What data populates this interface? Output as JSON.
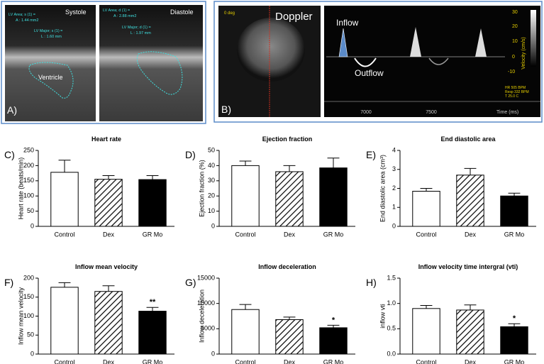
{
  "chart_data": [
    {
      "type": "bar",
      "panel_label": "C)",
      "title": "Heart rate",
      "y_label": "Heart rate (beats/min)",
      "categories": [
        "Control",
        "Dex",
        "GR Mo"
      ],
      "values": [
        178,
        155,
        154
      ],
      "errors": [
        40,
        12,
        13
      ],
      "colors": [
        "#ffffff",
        "#ffffff",
        "#000000"
      ],
      "patterns": [
        "solid",
        "hatch",
        "solid"
      ],
      "ylim": [
        0,
        250
      ],
      "yticks": [
        0,
        50,
        100,
        150,
        200,
        250
      ],
      "grid": false
    },
    {
      "type": "bar",
      "panel_label": "D)",
      "title": "Ejection fraction",
      "y_label": "Ejection fraction (%)",
      "categories": [
        "Control",
        "Dex",
        "GR Mo"
      ],
      "values": [
        40,
        36,
        38.5
      ],
      "errors": [
        3,
        4,
        6.5
      ],
      "colors": [
        "#ffffff",
        "#ffffff",
        "#000000"
      ],
      "patterns": [
        "solid",
        "hatch",
        "solid"
      ],
      "ylim": [
        0,
        50
      ],
      "yticks": [
        0,
        10,
        20,
        30,
        40,
        50
      ],
      "grid": false
    },
    {
      "type": "bar",
      "panel_label": "E)",
      "title": "End diastolic area",
      "y_label": "End diastolic area (cm³)",
      "categories": [
        "Control",
        "Dex",
        "GR Mo"
      ],
      "values": [
        1.85,
        2.7,
        1.6
      ],
      "errors": [
        0.15,
        0.35,
        0.15
      ],
      "colors": [
        "#ffffff",
        "#ffffff",
        "#000000"
      ],
      "patterns": [
        "solid",
        "hatch",
        "solid"
      ],
      "ylim": [
        0,
        4
      ],
      "yticks": [
        0,
        1,
        2,
        3,
        4
      ],
      "grid": false
    },
    {
      "type": "bar",
      "panel_label": "F)",
      "title": "Inflow mean velocity",
      "y_label": "Inflow mean velocity",
      "categories": [
        "Control",
        "Dex",
        "GR Mo"
      ],
      "values": [
        176,
        165,
        113
      ],
      "errors": [
        12,
        15,
        10
      ],
      "colors": [
        "#ffffff",
        "#ffffff",
        "#000000"
      ],
      "patterns": [
        "solid",
        "hatch",
        "solid"
      ],
      "ylim": [
        0,
        200
      ],
      "yticks": [
        0,
        50,
        100,
        150,
        200
      ],
      "grid": false,
      "annotations": [
        {
          "index": 2,
          "text": "**"
        }
      ]
    },
    {
      "type": "bar",
      "panel_label": "G)",
      "title": "Inflow deceleration",
      "y_label": "Inflow deceleration",
      "categories": [
        "Control",
        "Dex",
        "GR Mo"
      ],
      "values": [
        8800,
        6800,
        5200
      ],
      "errors": [
        1000,
        500,
        500
      ],
      "colors": [
        "#ffffff",
        "#ffffff",
        "#000000"
      ],
      "patterns": [
        "solid",
        "hatch",
        "solid"
      ],
      "ylim": [
        0,
        15000
      ],
      "yticks": [
        0,
        5000,
        10000,
        15000
      ],
      "grid": false,
      "annotations": [
        {
          "index": 2,
          "text": "*"
        }
      ]
    },
    {
      "type": "bar",
      "panel_label": "H)",
      "title": "Inflow velocity time intergral (vti)",
      "y_label": "inflow vti",
      "categories": [
        "Control",
        "Dex",
        "GR Mo"
      ],
      "values": [
        0.9,
        0.87,
        0.54
      ],
      "errors": [
        0.06,
        0.1,
        0.06
      ],
      "colors": [
        "#ffffff",
        "#ffffff",
        "#000000"
      ],
      "patterns": [
        "solid",
        "hatch",
        "solid"
      ],
      "ylim": [
        0,
        1.5
      ],
      "yticks": [
        {
          "value": 0,
          "label": "0.0"
        },
        0.5,
        {
          "value": 1,
          "label": "1.0"
        },
        1.5
      ],
      "grid": false,
      "annotations": [
        {
          "index": 2,
          "text": "*"
        }
      ]
    }
  ],
  "images": {
    "A": {
      "panel_label": "A)",
      "systole": "Systole",
      "diastole": "Diastole",
      "ventricle": "Ventricle",
      "systole_area": [
        "LV Area; s (1) =",
        "A : 1.44 mm2"
      ],
      "systole_major": [
        "LV Major; s (1) =",
        "L : 1.60 mm"
      ],
      "diastole_area": [
        "LV Area; d (1) =",
        "A : 2.88 mm2"
      ],
      "diastole_major": [
        "LV Major; d (1) =",
        "L : 1.97 mm"
      ]
    },
    "B": {
      "panel_label": "B)",
      "angle": "0 deg",
      "mode": "Doppler",
      "inflow": "Inflow",
      "outflow": "Outflow",
      "time_ticks": [
        7000,
        7500
      ],
      "time_label": "Time (ms)",
      "velocity_ticks": [
        30,
        20,
        10,
        0,
        -10
      ],
      "velocity_label": "Velocity (cm/s)",
      "stats": [
        "HR 505 BPM",
        "Resp 332 BPM",
        "T 25.0 C"
      ]
    }
  }
}
